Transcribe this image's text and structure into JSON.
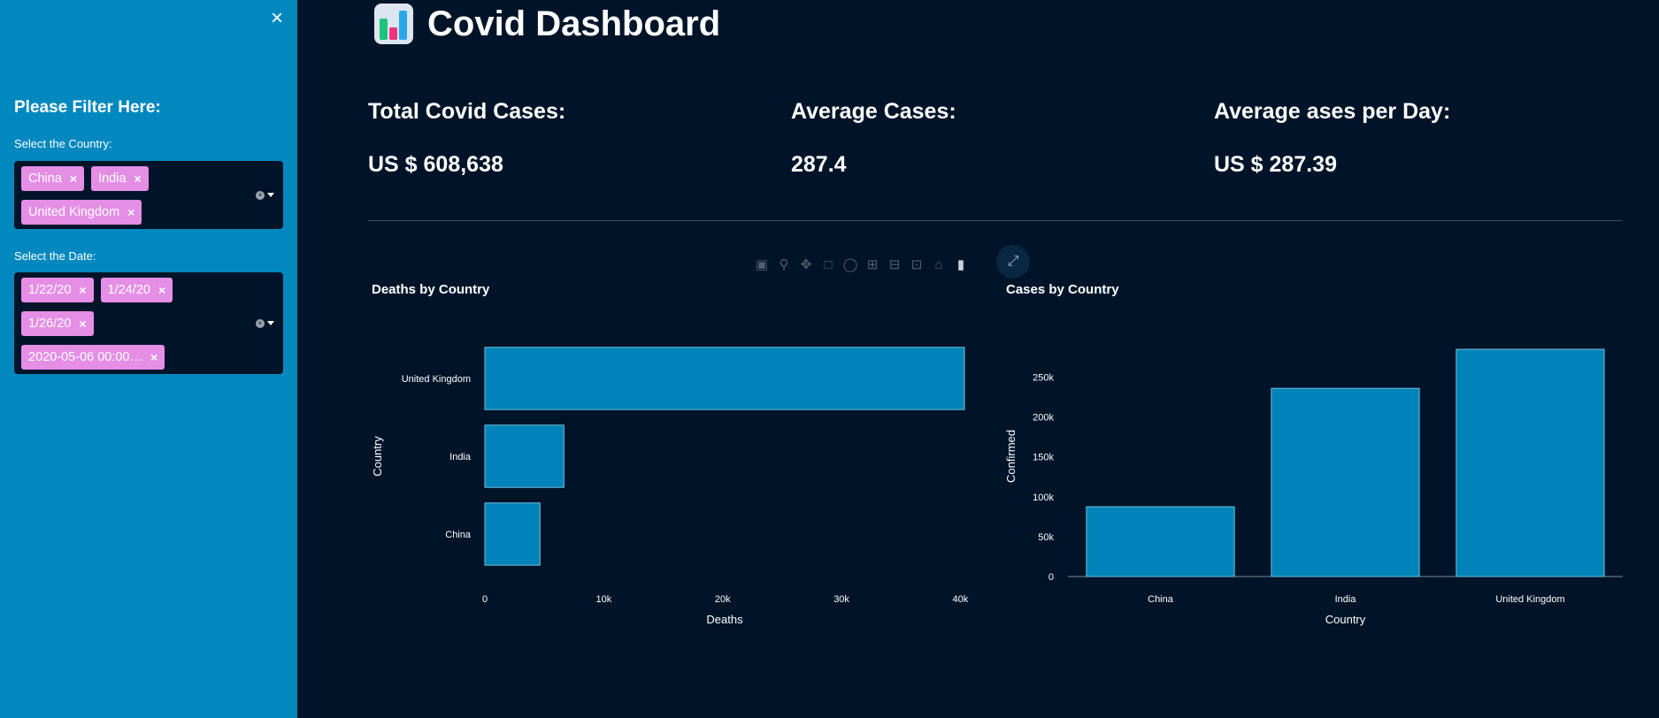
{
  "sidebar": {
    "close_label": "×",
    "filter_title": "Please Filter Here:",
    "country_label": "Select the Country:",
    "countries": [
      "China",
      "India",
      "United Kingdom"
    ],
    "date_label": "Select the Date:",
    "dates": [
      "1/22/20",
      "1/24/20",
      "1/26/20",
      "2020-05-06 00:00…"
    ],
    "chip_remove": "×"
  },
  "header": {
    "title": "Covid Dashboard",
    "icon": "bar-chart-icon"
  },
  "metrics": [
    {
      "label": "Total Covid Cases:",
      "value": "US $ 608,638"
    },
    {
      "label": "Average Cases:",
      "value": "287.4"
    },
    {
      "label": "Average ases per Day:",
      "value": "US $ 287.39"
    }
  ],
  "toolbar": {
    "icons": [
      "camera-icon",
      "zoom-icon",
      "pan-icon",
      "box-select-icon",
      "lasso-icon",
      "zoom-in-icon",
      "zoom-out-icon",
      "autoscale-icon",
      "reset-axes-icon",
      "plotly-logo-icon",
      "fullscreen-icon"
    ]
  },
  "colors": {
    "background": "#001429",
    "sidebar": "#0088bf",
    "chip": "#e58ee6",
    "bar": "#0083b8",
    "bar_outline": "#6fc0e0"
  },
  "chart_data": [
    {
      "type": "bar",
      "orientation": "horizontal",
      "title": "Deaths by Country",
      "xlabel": "Deaths",
      "ylabel": "Country",
      "categories": [
        "China",
        "India",
        "United Kingdom"
      ],
      "values": [
        4637,
        6649,
        40341
      ],
      "xlim": [
        0,
        40341
      ],
      "xticks": [
        0,
        10000,
        20000,
        30000,
        40000
      ],
      "xtick_labels": [
        "0",
        "10k",
        "20k",
        "30k",
        "40k"
      ]
    },
    {
      "type": "bar",
      "title": "Cases by Country",
      "xlabel": "Country",
      "ylabel": "Confirmed",
      "categories": [
        "China",
        "India",
        "United Kingdom"
      ],
      "values": [
        87500,
        236000,
        285000
      ],
      "ylim": [
        0,
        285000
      ],
      "yticks": [
        0,
        50000,
        100000,
        150000,
        200000,
        250000
      ],
      "ytick_labels": [
        "0",
        "50k",
        "100k",
        "150k",
        "200k",
        "250k"
      ]
    }
  ]
}
